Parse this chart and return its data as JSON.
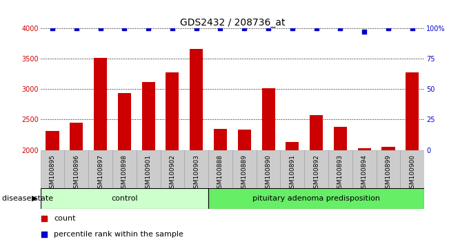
{
  "title": "GDS2432 / 208736_at",
  "samples": [
    "GSM100895",
    "GSM100896",
    "GSM100897",
    "GSM100898",
    "GSM100901",
    "GSM100902",
    "GSM100903",
    "GSM100888",
    "GSM100889",
    "GSM100890",
    "GSM100891",
    "GSM100892",
    "GSM100893",
    "GSM100894",
    "GSM100899",
    "GSM100900"
  ],
  "counts": [
    2310,
    2450,
    3510,
    2940,
    3120,
    3270,
    3660,
    2350,
    2340,
    3010,
    2130,
    2570,
    2380,
    2030,
    2050,
    3270
  ],
  "percentiles": [
    100,
    100,
    100,
    100,
    100,
    100,
    100,
    100,
    100,
    100,
    100,
    100,
    100,
    97,
    100,
    100
  ],
  "control_count": 7,
  "pituitary_count": 9,
  "group_label_control": "control",
  "group_label_pituitary": "pituitary adenoma predisposition",
  "group_color_control": "#CCFFCC",
  "group_color_pituitary": "#66EE66",
  "bar_color": "#CC0000",
  "dot_color": "#0000CC",
  "ylim_left": [
    2000,
    4000
  ],
  "ylim_right": [
    0,
    100
  ],
  "yticks_left": [
    2000,
    2500,
    3000,
    3500,
    4000
  ],
  "yticks_right": [
    0,
    25,
    50,
    75,
    100
  ],
  "tick_label_bg": "#CCCCCC",
  "background_color": "#FFFFFF",
  "grid_color": "#000000",
  "label_disease_state": "disease state",
  "legend_count": "count",
  "legend_percentile": "percentile rank within the sample",
  "title_fontsize": 10,
  "tick_fontsize": 7,
  "label_fontsize": 8
}
